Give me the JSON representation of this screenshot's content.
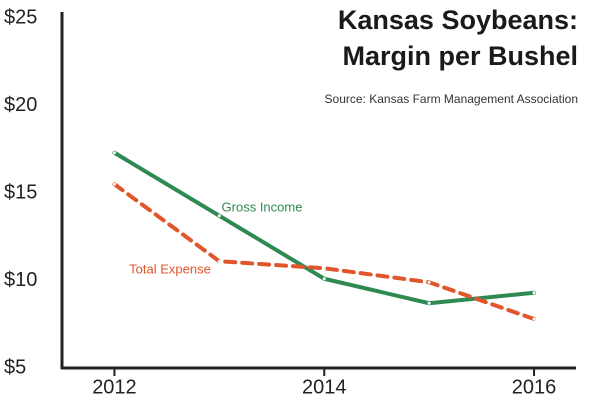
{
  "chart_data": {
    "type": "line",
    "title": [
      "Kansas Soybeans:",
      "Margin per Bushel"
    ],
    "subtitle": "Source: Kansas Farm Management Association",
    "x": [
      2012,
      2013,
      2014,
      2015,
      2016
    ],
    "series": [
      {
        "name": "Gross Income",
        "color": "#2f8a52",
        "dashed": false,
        "values": [
          17.3,
          13.7,
          10.1,
          8.7,
          9.3
        ]
      },
      {
        "name": "Total Expense",
        "color": "#e0552a",
        "dashed": true,
        "values": [
          15.5,
          11.1,
          10.7,
          9.9,
          7.8
        ]
      }
    ],
    "xlim": [
      2011.5,
      2016.4
    ],
    "xticks": [
      2012,
      2014,
      2016
    ],
    "ylim": [
      5,
      25
    ],
    "yticks": [
      {
        "value": 5,
        "label": "$5"
      },
      {
        "value": 10,
        "label": "$10"
      },
      {
        "value": 15,
        "label": "$15"
      },
      {
        "value": 20,
        "label": "$20"
      },
      {
        "value": 25,
        "label": "$25"
      }
    ],
    "grid": false
  }
}
